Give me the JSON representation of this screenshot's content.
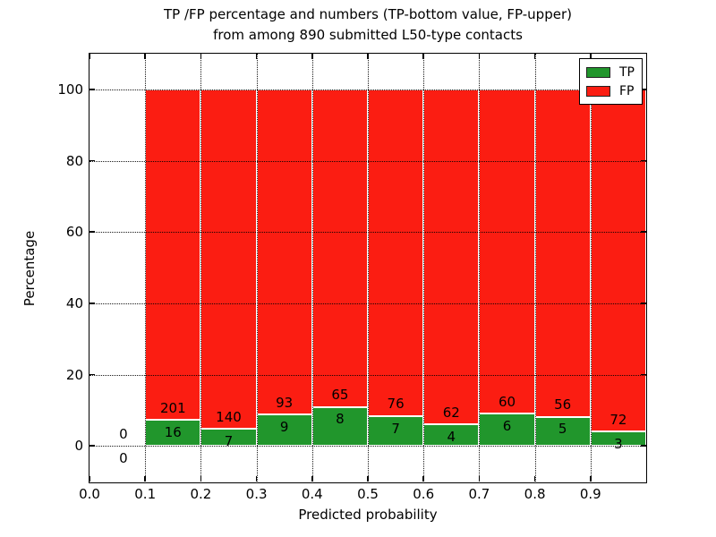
{
  "figure": {
    "title_line1": "TP /FP percentage and numbers (TP-bottom value, FP-upper)",
    "title_line2": "from among 890 submitted L50-type contacts"
  },
  "legend": {
    "items": [
      {
        "label": "TP",
        "color": "#21962c"
      },
      {
        "label": "FP",
        "color": "#fb1d12"
      }
    ]
  },
  "chart_data": {
    "type": "bar",
    "stacked": true,
    "title": "TP /FP percentage and numbers (TP-bottom value, FP-upper) from among 890 submitted L50-type contacts",
    "xlabel": "Predicted probability",
    "ylabel": "Percentage",
    "total_contacts": 890,
    "xlim": [
      0.0,
      1.0
    ],
    "ylim": [
      -10,
      110
    ],
    "x_ticks": [
      0.0,
      0.1,
      0.2,
      0.3,
      0.4,
      0.5,
      0.6,
      0.7,
      0.8,
      0.9
    ],
    "x_tick_labels": [
      "0.0",
      "0.1",
      "0.2",
      "0.3",
      "0.4",
      "0.5",
      "0.6",
      "0.7",
      "0.8",
      "0.9"
    ],
    "y_ticks": [
      0,
      20,
      40,
      60,
      80,
      100
    ],
    "y_tick_labels": [
      "0",
      "20",
      "40",
      "60",
      "80",
      "100"
    ],
    "grid_style": "dotted",
    "legend_position": "upper right",
    "colors": {
      "tp": "#21962c",
      "fp": "#fb1d12",
      "bar_edge": "#ffffff"
    },
    "bars_note": "Each bin stacked to 100%: green = TP/(TP+FP)*100, red = FP/(TP+FP)*100; labels show raw counts",
    "categories": [
      "0.0-0.1",
      "0.1-0.2",
      "0.2-0.3",
      "0.3-0.4",
      "0.4-0.5",
      "0.5-0.6",
      "0.6-0.7",
      "0.7-0.8",
      "0.8-0.9",
      "0.9-1.0"
    ],
    "series": [
      {
        "name": "TP",
        "values": [
          0,
          16,
          7,
          9,
          8,
          7,
          4,
          6,
          5,
          3
        ]
      },
      {
        "name": "FP",
        "values": [
          0,
          201,
          140,
          93,
          65,
          76,
          62,
          60,
          56,
          72
        ]
      }
    ],
    "bins": [
      {
        "range": [
          0.0,
          0.1
        ],
        "tp": 0,
        "fp": 0
      },
      {
        "range": [
          0.1,
          0.2
        ],
        "tp": 16,
        "fp": 201
      },
      {
        "range": [
          0.2,
          0.3
        ],
        "tp": 7,
        "fp": 140
      },
      {
        "range": [
          0.3,
          0.4
        ],
        "tp": 9,
        "fp": 93
      },
      {
        "range": [
          0.4,
          0.5
        ],
        "tp": 8,
        "fp": 65
      },
      {
        "range": [
          0.5,
          0.6
        ],
        "tp": 7,
        "fp": 76
      },
      {
        "range": [
          0.6,
          0.7
        ],
        "tp": 4,
        "fp": 62
      },
      {
        "range": [
          0.7,
          0.8
        ],
        "tp": 6,
        "fp": 60
      },
      {
        "range": [
          0.8,
          0.9
        ],
        "tp": 5,
        "fp": 56
      },
      {
        "range": [
          0.9,
          1.0
        ],
        "tp": 3,
        "fp": 72
      }
    ]
  }
}
